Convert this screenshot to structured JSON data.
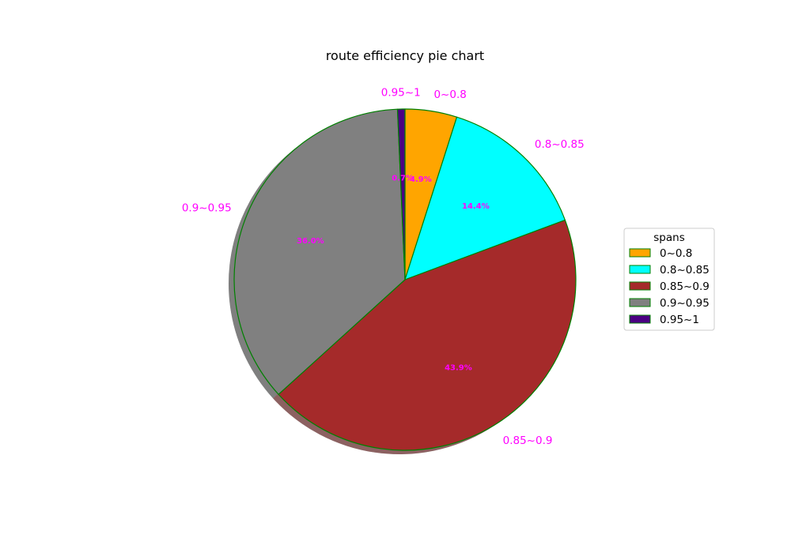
{
  "chart_data": {
    "type": "pie",
    "title": "route efficiency pie chart",
    "categories": [
      "0~0.8",
      "0.8~0.85",
      "0.85~0.9",
      "0.9~0.95",
      "0.95~1"
    ],
    "values": [
      4.9,
      14.4,
      43.9,
      36.0,
      0.7
    ],
    "percent_labels": [
      "4.9%",
      "14.4%",
      "43.9%",
      "36.0%",
      "0.7%"
    ],
    "colors": [
      "#ffa500",
      "#00ffff",
      "#a52a2a",
      "#808080",
      "#4b0082"
    ],
    "edge_color": "#008000",
    "label_color": "#ff00ff",
    "shadow": true,
    "start_angle_deg": 90,
    "direction": "clockwise",
    "legend": {
      "title": "spans",
      "placement": "center-right"
    }
  }
}
